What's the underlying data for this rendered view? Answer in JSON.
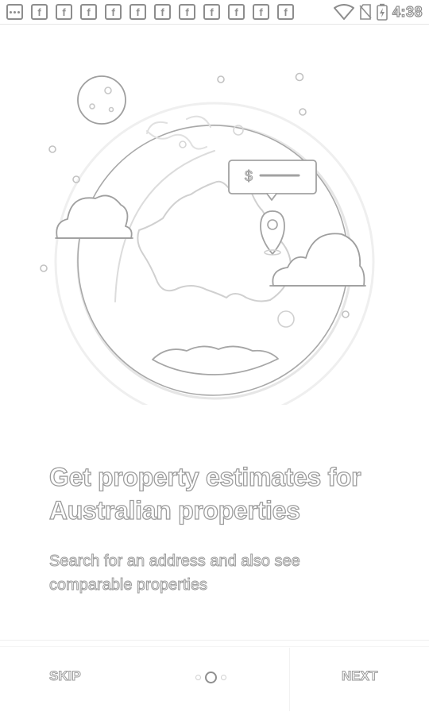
{
  "status_bar": {
    "notification_icons": [
      "more-icon",
      "facebook-icon",
      "facebook-icon",
      "facebook-icon",
      "facebook-icon",
      "facebook-icon",
      "facebook-icon",
      "facebook-icon",
      "facebook-icon",
      "facebook-icon",
      "facebook-icon",
      "facebook-icon"
    ],
    "facebook_glyph": "f",
    "time": "4:38"
  },
  "onboarding": {
    "illustration_label": "$",
    "headline": "Get property estimates for Australian properties",
    "subline": "Search for an address and also see comparable properties"
  },
  "footer": {
    "skip_label": "SKIP",
    "next_label": "NEXT",
    "page_indicator": {
      "current": 2,
      "total": 3
    }
  }
}
